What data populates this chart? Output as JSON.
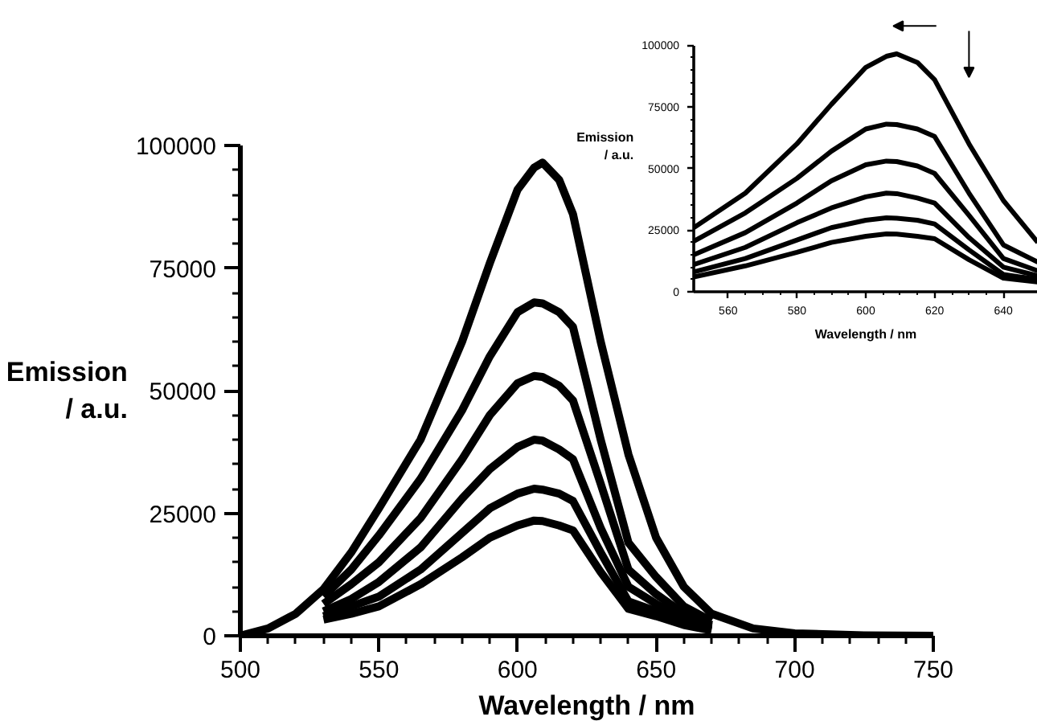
{
  "chart_data": [
    {
      "type": "line",
      "xlabel": "Wavelength / nm",
      "ylabel": "Emission\n/ a.u.",
      "xlim": [
        500,
        750
      ],
      "ylim": [
        0,
        100000
      ],
      "xticks": [
        500,
        550,
        600,
        650,
        700,
        750
      ],
      "yticks": [
        0,
        25000,
        50000,
        75000,
        100000
      ],
      "grid": false,
      "marker": "none",
      "line_style": "solid",
      "x": [
        500,
        510,
        520,
        530,
        540,
        550,
        565,
        580,
        590,
        600,
        606,
        609,
        615,
        620,
        630,
        640,
        650,
        660,
        670,
        685,
        700,
        725,
        750
      ],
      "series": [
        {
          "color": "#000000",
          "values": [
            0,
            1500,
            4500,
            9500,
            17000,
            26000,
            40000,
            60000,
            76000,
            91000,
            95500,
            96500,
            93000,
            86000,
            60000,
            37000,
            20000,
            10000,
            4500,
            1500,
            500,
            100,
            0
          ]
        },
        {
          "color": "#000000",
          "values": [
            null,
            null,
            null,
            8000,
            13500,
            20500,
            32000,
            46000,
            57000,
            66000,
            68000,
            67800,
            66000,
            63000,
            40000,
            19000,
            12000,
            6000,
            3000,
            null,
            null,
            null,
            null
          ]
        },
        {
          "color": "#000000",
          "values": [
            null,
            null,
            null,
            6500,
            10500,
            15000,
            24000,
            36000,
            45000,
            51500,
            53000,
            52800,
            51000,
            48000,
            31000,
            13500,
            8500,
            4500,
            2200,
            null,
            null,
            null,
            null
          ]
        },
        {
          "color": "#000000",
          "values": [
            null,
            null,
            null,
            5000,
            7500,
            11000,
            18000,
            28000,
            34000,
            38500,
            40000,
            39800,
            38000,
            36000,
            22000,
            10000,
            6500,
            3500,
            1800,
            null,
            null,
            null,
            null
          ]
        },
        {
          "color": "#000000",
          "values": [
            null,
            null,
            null,
            4000,
            6000,
            8000,
            13500,
            21000,
            26000,
            29000,
            30000,
            29800,
            29000,
            27500,
            17000,
            7000,
            5000,
            2700,
            1400,
            null,
            null,
            null,
            null
          ]
        },
        {
          "color": "#000000",
          "values": [
            null,
            null,
            null,
            3300,
            4500,
            6000,
            10500,
            16000,
            20000,
            22500,
            23500,
            23400,
            22500,
            21500,
            13000,
            5500,
            4000,
            2200,
            1100,
            null,
            null,
            null,
            null
          ]
        }
      ]
    },
    {
      "type": "line",
      "xlabel": "Wavelength / nm",
      "ylabel": "Emission\n/ a.u.",
      "xlim": [
        550,
        650
      ],
      "ylim": [
        0,
        100000
      ],
      "xticks": [
        560,
        580,
        600,
        620,
        640
      ],
      "yticks": [
        0,
        25000,
        50000,
        75000,
        100000
      ],
      "grid": false,
      "marker": "none",
      "line_style": "solid",
      "x": [
        550,
        565,
        580,
        590,
        600,
        606,
        609,
        615,
        620,
        630,
        640,
        650
      ],
      "series": [
        {
          "color": "#000000",
          "values": [
            26000,
            40000,
            60000,
            76000,
            91000,
            95500,
            96500,
            93000,
            86000,
            60000,
            37000,
            20000
          ]
        },
        {
          "color": "#000000",
          "values": [
            20500,
            32000,
            46000,
            57000,
            66000,
            68000,
            67800,
            66000,
            63000,
            40000,
            19000,
            12000
          ]
        },
        {
          "color": "#000000",
          "values": [
            15000,
            24000,
            36000,
            45000,
            51500,
            53000,
            52800,
            51000,
            48000,
            31000,
            13500,
            8500
          ]
        },
        {
          "color": "#000000",
          "values": [
            11000,
            18000,
            28000,
            34000,
            38500,
            40000,
            39800,
            38000,
            36000,
            22000,
            10000,
            6500
          ]
        },
        {
          "color": "#000000",
          "values": [
            8000,
            13500,
            21000,
            26000,
            29000,
            30000,
            29800,
            29000,
            27500,
            17000,
            7000,
            5000
          ]
        },
        {
          "color": "#000000",
          "values": [
            6000,
            10500,
            16000,
            20000,
            22500,
            23500,
            23400,
            22500,
            21500,
            13000,
            5500,
            4000
          ]
        }
      ]
    }
  ]
}
